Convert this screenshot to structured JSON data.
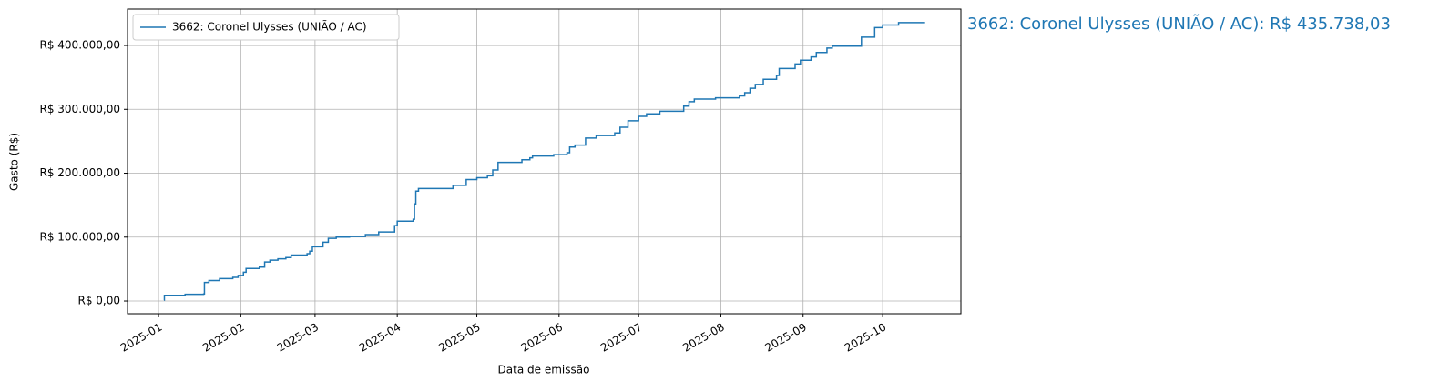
{
  "chart_data": {
    "type": "line",
    "step": "post",
    "xlabel": "Data de emissão",
    "ylabel": "Gasto (R$)",
    "annotation": "3662: Coronel Ulysses (UNIÃO / AC): R$ 435.738,03",
    "x": [
      2,
      2.2,
      10,
      17,
      17.3,
      19,
      23,
      28,
      30,
      32,
      33,
      38,
      40,
      42,
      45,
      48,
      50,
      56,
      57,
      58,
      62,
      64,
      67,
      72,
      78,
      83,
      89,
      90,
      96,
      96.5,
      97,
      98,
      111,
      116,
      120,
      124,
      126,
      128,
      137,
      140,
      141,
      149,
      154,
      155,
      157,
      161,
      165,
      172,
      174,
      177,
      181,
      184,
      189,
      198,
      200,
      202,
      210,
      219,
      221,
      223,
      225,
      228,
      233,
      234,
      240,
      242,
      246,
      248,
      252,
      254,
      265,
      270,
      273,
      279,
      289
    ],
    "series": [
      {
        "name": "3662: Coronel Ulysses (UNIÃO / AC)",
        "color": "#1f77b4",
        "values": [
          1500,
          9000,
          10500,
          11000,
          29000,
          32000,
          35000,
          37000,
          40000,
          45000,
          51000,
          53000,
          61000,
          64000,
          66000,
          68000,
          72000,
          74000,
          78000,
          85000,
          92000,
          98000,
          100000,
          101000,
          104000,
          108000,
          118000,
          125000,
          128000,
          152000,
          172000,
          176000,
          181000,
          190000,
          193000,
          196000,
          205000,
          217000,
          221000,
          224000,
          227000,
          229000,
          232000,
          241000,
          244000,
          255000,
          259000,
          263000,
          272000,
          282000,
          289000,
          293000,
          297000,
          305000,
          312000,
          316000,
          318000,
          321000,
          326000,
          333000,
          339000,
          347000,
          353000,
          364000,
          371000,
          377000,
          382000,
          389000,
          396000,
          399000,
          413000,
          428000,
          432000,
          435738.03,
          435738.03
        ]
      }
    ],
    "xlim": [
      -11.7,
      302.5
    ],
    "xticks": [
      {
        "value": 0,
        "label": "2025-01"
      },
      {
        "value": 31,
        "label": "2025-02"
      },
      {
        "value": 59,
        "label": "2025-03"
      },
      {
        "value": 90,
        "label": "2025-04"
      },
      {
        "value": 120,
        "label": "2025-05"
      },
      {
        "value": 151,
        "label": "2025-06"
      },
      {
        "value": 181,
        "label": "2025-07"
      },
      {
        "value": 212,
        "label": "2025-08"
      },
      {
        "value": 243,
        "label": "2025-09"
      },
      {
        "value": 273,
        "label": "2025-10"
      }
    ],
    "ylim": [
      -19900,
      457000
    ],
    "yticks": [
      {
        "value": 0,
        "label": "R$ 0,00"
      },
      {
        "value": 100000,
        "label": "R$ 100.000,00"
      },
      {
        "value": 200000,
        "label": "R$ 200.000,00"
      },
      {
        "value": 300000,
        "label": "R$ 300.000,00"
      },
      {
        "value": 400000,
        "label": "R$ 400.000,00"
      }
    ],
    "grid": true,
    "legend": "upper left"
  }
}
